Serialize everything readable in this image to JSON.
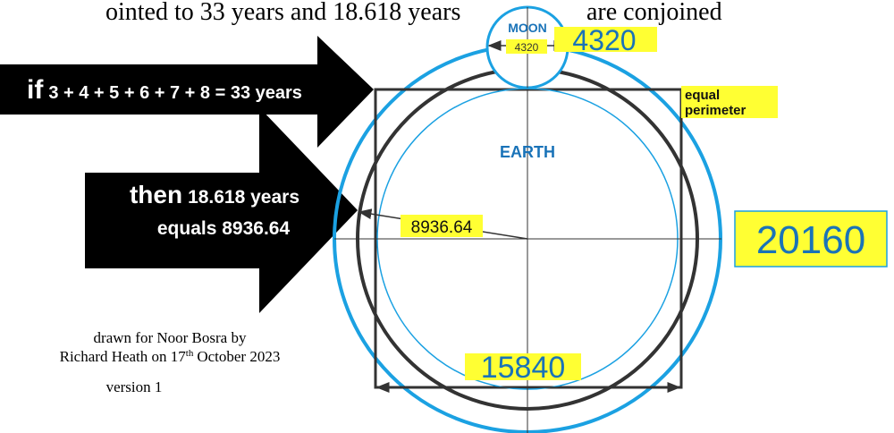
{
  "header": {
    "left": "ointed to 33 years and 18.618 years",
    "right": "are conjoined"
  },
  "moon": {
    "label": "MOON",
    "diameter": "4320",
    "value": "4320"
  },
  "arrow_top": {
    "lead": "if",
    "text": "3 + 4 + 5 + 6 + 7 + 8 = 33 years"
  },
  "arrow_bottom": {
    "lead": "then",
    "line1": "18.618 years",
    "line2": "equals 8936.64"
  },
  "square_note": {
    "line1": "equal",
    "line2": "perimeter"
  },
  "earth": {
    "label": "EARTH",
    "radius": "8936.64",
    "circumference": "20160",
    "width": "15840"
  },
  "credit": {
    "line1": "drawn for Noor Bosra by",
    "line2a": "Richard Heath on 17",
    "line2sup": "th",
    "line2b": "October 2023",
    "line3": "version 1"
  }
}
